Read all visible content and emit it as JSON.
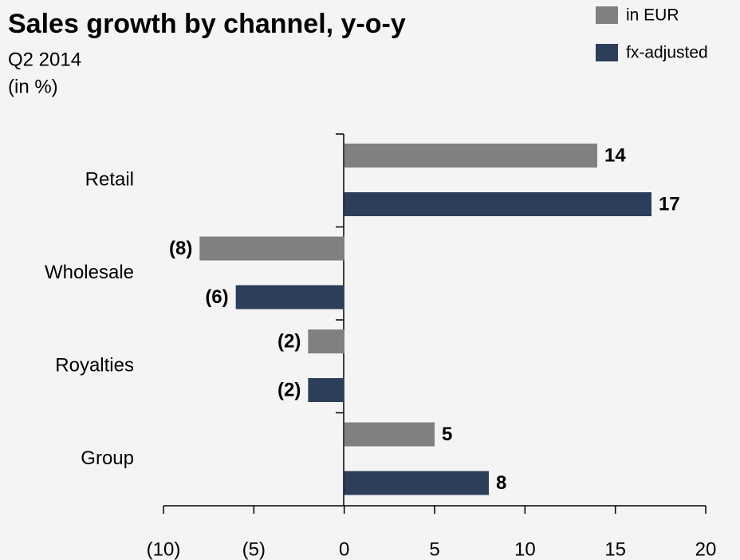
{
  "chart_data": {
    "type": "bar",
    "orientation": "horizontal",
    "title": "Sales growth by channel, y-o-y",
    "subtitle": [
      "Q2 2014",
      "(in %)"
    ],
    "categories": [
      "Retail",
      "Wholesale",
      "Royalties",
      "Group"
    ],
    "series": [
      {
        "name": "in EUR",
        "color": "#808080",
        "values": [
          14,
          -8,
          -2,
          5
        ],
        "value_labels": [
          "14",
          "(8)",
          "(2)",
          "5"
        ]
      },
      {
        "name": "fx-adjusted",
        "color": "#2d3e5a",
        "values": [
          17,
          -6,
          -2,
          8
        ],
        "value_labels": [
          "17",
          "(6)",
          "(2)",
          "8"
        ]
      }
    ],
    "xlim": [
      -10,
      20
    ],
    "xticks": [
      {
        "value": -10,
        "label": "(10)"
      },
      {
        "value": -5,
        "label": "(5)"
      },
      0,
      5,
      10,
      15,
      20
    ],
    "legend": "top right",
    "grid": false
  }
}
